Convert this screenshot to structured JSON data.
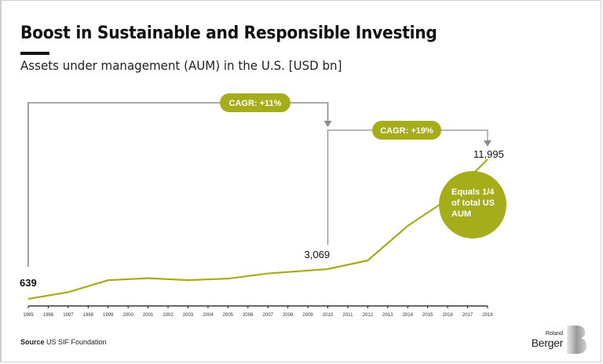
{
  "header": {
    "title": "Boost in Sustainable and Responsible Investing",
    "subtitle": "Assets under management (AUM) in the U.S. [USD bn]"
  },
  "footer": {
    "source_label": "Source",
    "source_text": "US SIF Foundation",
    "logo_text_top": "Roland",
    "logo_text_bottom": "Berger"
  },
  "colors": {
    "accent": "#a6ad1b",
    "connector": "#8c8c8c",
    "text": "#111111"
  },
  "chart_data": {
    "type": "line",
    "title": "Assets under management (AUM) in the U.S. [USD bn]",
    "xlabel": "",
    "ylabel": "USD bn",
    "x_ticks": [
      "1995",
      "1996",
      "1997",
      "1998",
      "1999",
      "2000",
      "2001",
      "2002",
      "2003",
      "2004",
      "2005",
      "2006",
      "2007",
      "2008",
      "2009",
      "2010",
      "2011",
      "2012",
      "2013",
      "2014",
      "2015",
      "2016",
      "2017",
      "2018"
    ],
    "series": [
      {
        "name": "AUM",
        "x": [
          1995,
          1997,
          1999,
          2001,
          2003,
          2005,
          2007,
          2010,
          2012,
          2014,
          2016,
          2018
        ],
        "values": [
          639,
          1185,
          2159,
          2323,
          2164,
          2290,
          2711,
          3069,
          3744,
          6572,
          8723,
          11995
        ]
      }
    ],
    "data_labels": [
      {
        "x": 1995,
        "text": "639"
      },
      {
        "x": 2010,
        "text": "3,069"
      },
      {
        "x": 2018,
        "text": "11,995"
      }
    ],
    "annotations": [
      {
        "from": 1995,
        "to": 2010,
        "text": "CAGR: +11%"
      },
      {
        "from": 2010,
        "to": 2018,
        "text": "CAGR: +19%"
      }
    ],
    "callout": {
      "x": 2018,
      "lines": [
        "Equals 1/4",
        "of total US",
        "AUM"
      ]
    },
    "grid": false,
    "legend": "none"
  }
}
